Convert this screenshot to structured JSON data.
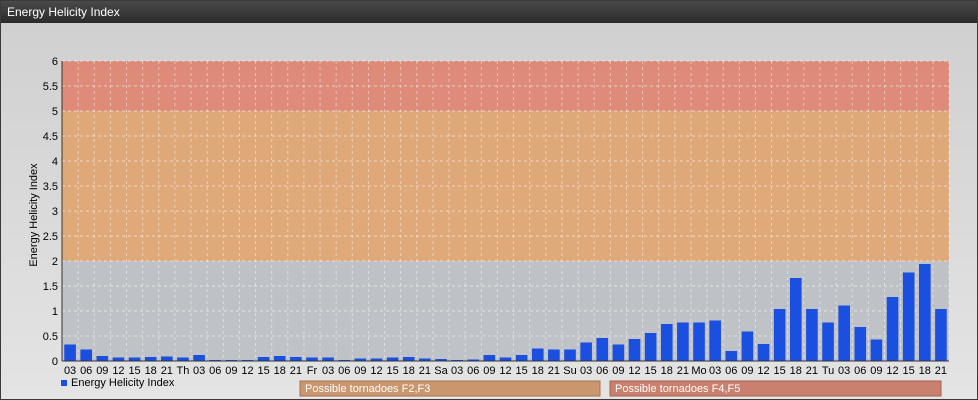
{
  "window": {
    "title": "Energy Helicity Index"
  },
  "chart_data": {
    "type": "bar",
    "title": "",
    "ylabel": "Energy Helicity Index",
    "xlabel": "",
    "ylim": [
      0,
      6
    ],
    "yticks": [
      "0",
      "0.5",
      "1",
      "1.5",
      "2",
      "2.5",
      "3",
      "3.5",
      "4",
      "4.5",
      "5",
      "5.5",
      "6"
    ],
    "grid": true,
    "bands": [
      {
        "from": 0,
        "to": 2,
        "color": "#b8bcc2"
      },
      {
        "from": 2,
        "to": 5,
        "color": "#e0a068"
      },
      {
        "from": 5,
        "to": 6,
        "color": "#e07e6a"
      }
    ],
    "categories": [
      "03",
      "06",
      "09",
      "12",
      "15",
      "18",
      "21",
      "Th",
      "03",
      "06",
      "09",
      "12",
      "15",
      "18",
      "21",
      "Fr",
      "03",
      "06",
      "09",
      "12",
      "15",
      "18",
      "21",
      "Sa",
      "03",
      "06",
      "09",
      "12",
      "15",
      "18",
      "21",
      "Su",
      "03",
      "06",
      "09",
      "12",
      "15",
      "18",
      "21",
      "Mo",
      "03",
      "06",
      "09",
      "12",
      "15",
      "18",
      "21",
      "Tu",
      "03",
      "06",
      "09",
      "12",
      "15",
      "18",
      "21"
    ],
    "series": [
      {
        "name": "Energy Helicity Index",
        "color": "#1a4fe0",
        "values": [
          0.33,
          0.23,
          0.1,
          0.07,
          0.07,
          0.08,
          0.09,
          0.07,
          0.12,
          0.02,
          0.02,
          0.02,
          0.08,
          0.1,
          0.08,
          0.07,
          0.07,
          0.02,
          0.05,
          0.05,
          0.07,
          0.08,
          0.05,
          0.04,
          0.02,
          0.03,
          0.12,
          0.07,
          0.12,
          0.25,
          0.23,
          0.23,
          0.37,
          0.46,
          0.33,
          0.44,
          0.56,
          0.74,
          0.77,
          0.77,
          0.81,
          0.2,
          0.59,
          0.34,
          1.04,
          1.66,
          1.04,
          0.77,
          1.11,
          0.68,
          0.43,
          1.28,
          1.77,
          1.94,
          1.04
        ]
      }
    ],
    "legend_position": "bottom-left",
    "annotations": [
      {
        "label": "Possible tornadoes F2,F3",
        "color": "#c9966e"
      },
      {
        "label": "Possible tornadoes F4,F5",
        "color": "#c9806e"
      }
    ]
  }
}
